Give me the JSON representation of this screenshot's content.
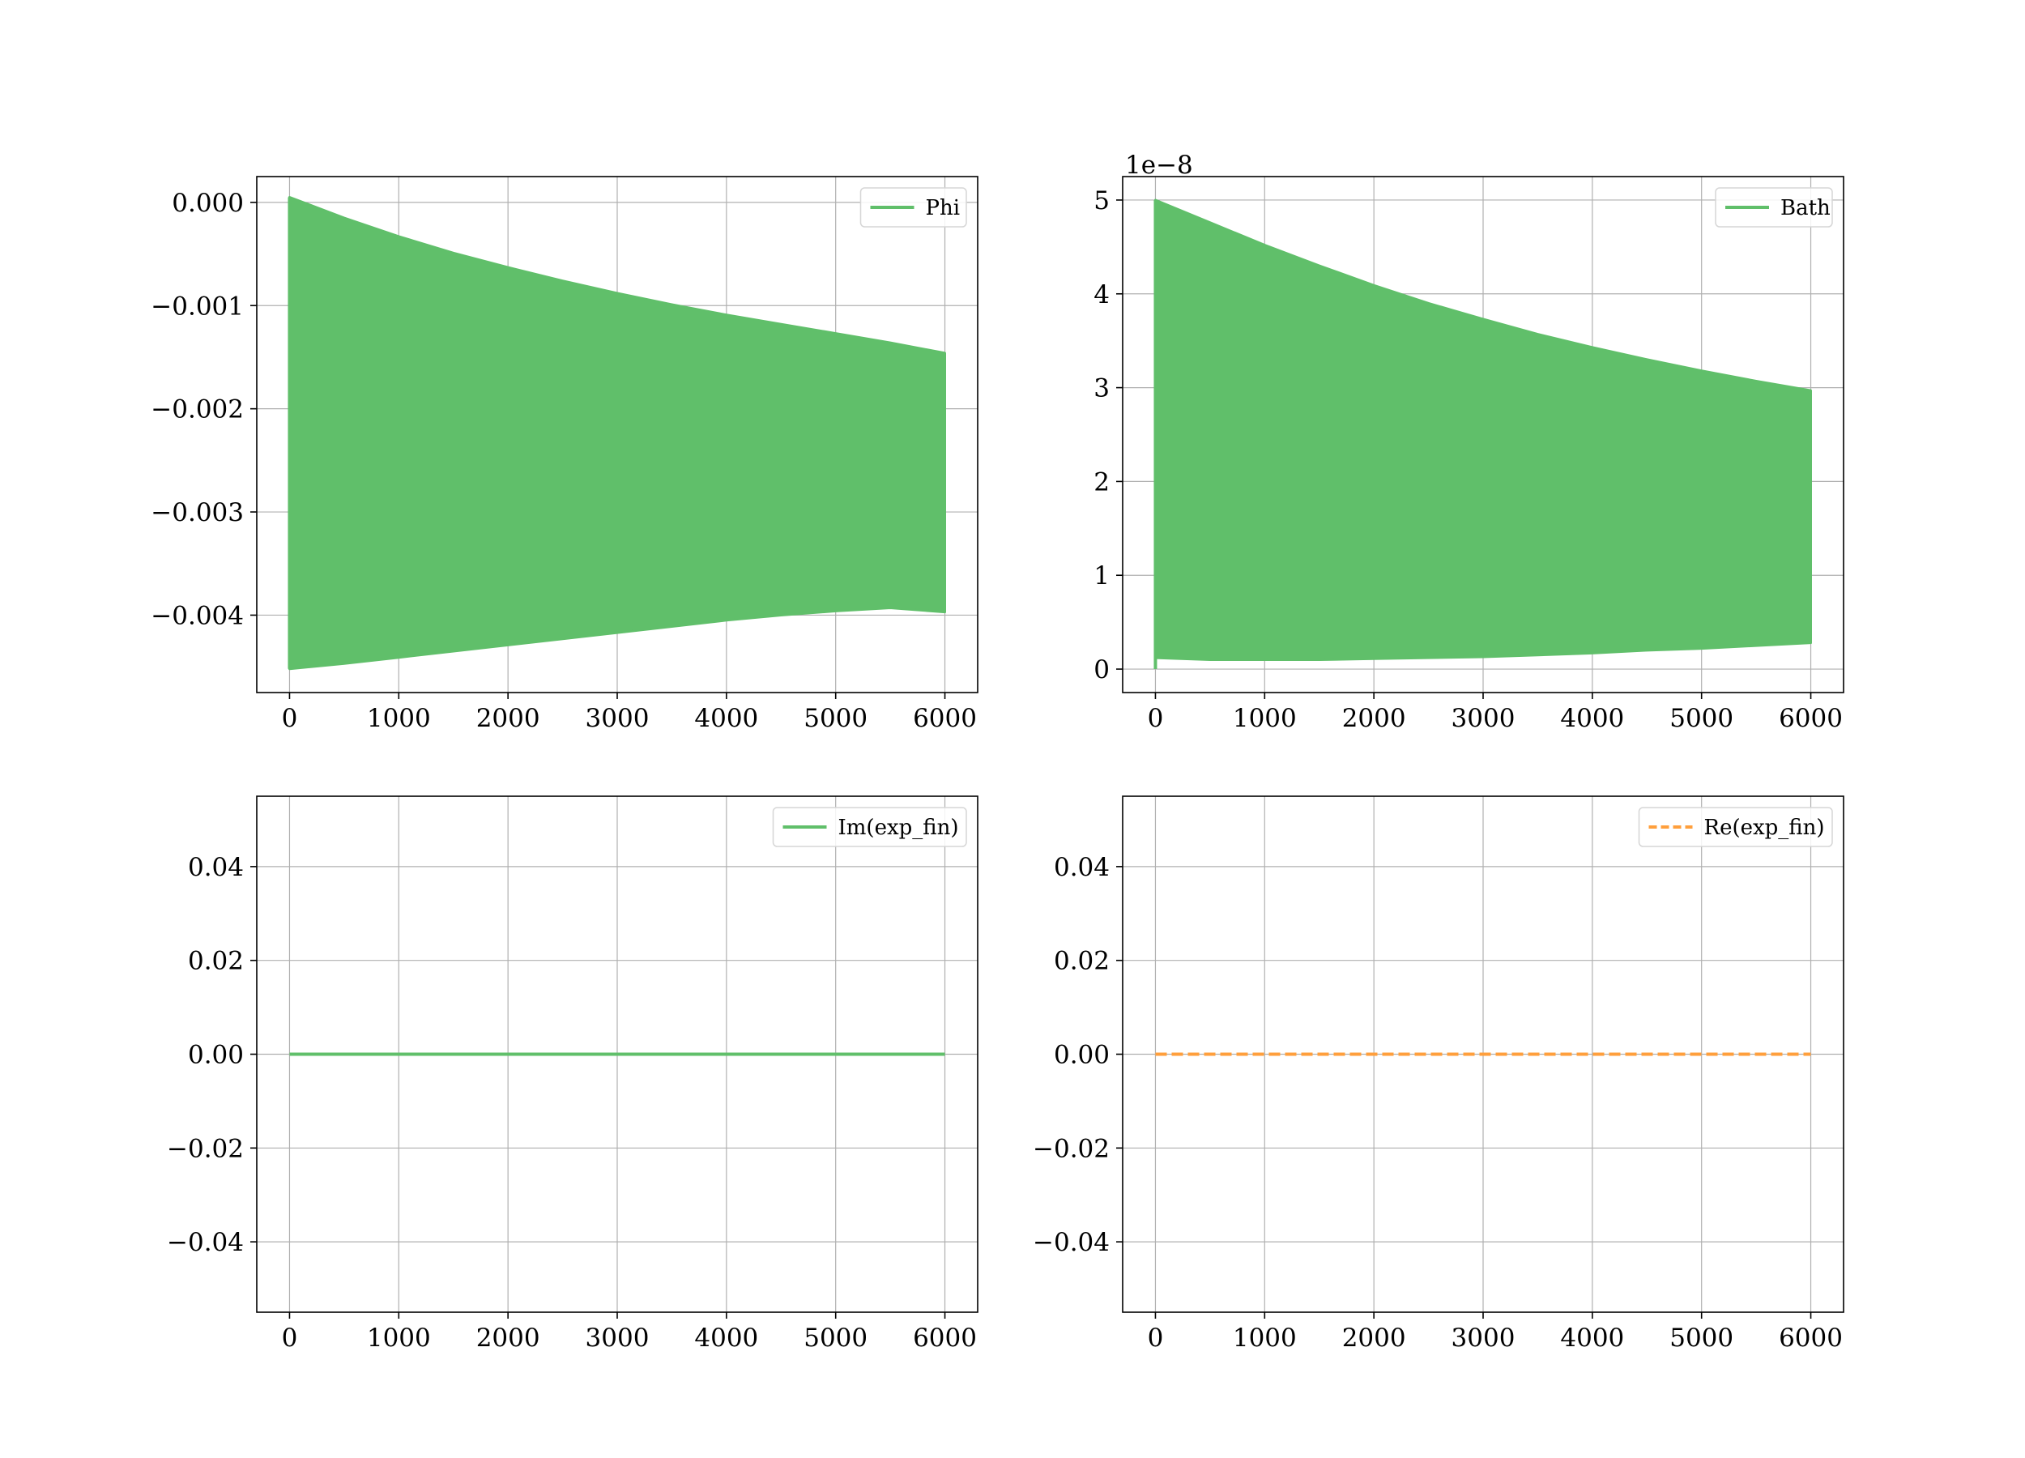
{
  "colors": {
    "green": "#60bf6a",
    "orange": "#ff9f3c",
    "grid": "#b0b0b0",
    "axes": "#000000"
  },
  "chart_data": [
    {
      "id": "phi",
      "type": "area",
      "title": "",
      "xlabel": "",
      "ylabel": "",
      "xlim": [
        -300,
        6300
      ],
      "ylim": [
        -0.00475,
        0.00025
      ],
      "xticks": [
        0,
        1000,
        2000,
        3000,
        4000,
        5000,
        6000
      ],
      "xtick_labels": [
        "0",
        "1000",
        "2000",
        "3000",
        "4000",
        "5000",
        "6000"
      ],
      "yticks": [
        0.0,
        -0.001,
        -0.002,
        -0.003,
        -0.004
      ],
      "ytick_labels": [
        "0.000",
        "−0.001",
        "−0.002",
        "−0.003",
        "−0.004"
      ],
      "grid": true,
      "legend_position": "top-right",
      "y_offset_label": "",
      "series": [
        {
          "name": "Phi",
          "color": "#60bf6a",
          "style": "solid-band",
          "x": [
            0,
            500,
            1000,
            1500,
            2000,
            2500,
            3000,
            3500,
            4000,
            4500,
            5000,
            5500,
            6000
          ],
          "upper": [
            5e-05,
            -0.00015,
            -0.00033,
            -0.00049,
            -0.00063,
            -0.00076,
            -0.00088,
            -0.00099,
            -0.00109,
            -0.00118,
            -0.00127,
            -0.00136,
            -0.00146
          ],
          "lower": [
            -0.00452,
            -0.00447,
            -0.00441,
            -0.00435,
            -0.00429,
            -0.00423,
            -0.00417,
            -0.00411,
            -0.00405,
            -0.004,
            -0.00396,
            -0.00393,
            -0.00397
          ]
        }
      ]
    },
    {
      "id": "bath",
      "type": "area",
      "title": "",
      "xlabel": "",
      "ylabel": "",
      "xlim": [
        -300,
        6300
      ],
      "ylim": [
        -0.25,
        5.25
      ],
      "xticks": [
        0,
        1000,
        2000,
        3000,
        4000,
        5000,
        6000
      ],
      "xtick_labels": [
        "0",
        "1000",
        "2000",
        "3000",
        "4000",
        "5000",
        "6000"
      ],
      "yticks": [
        0,
        1,
        2,
        3,
        4,
        5
      ],
      "ytick_labels": [
        "0",
        "1",
        "2",
        "3",
        "4",
        "5"
      ],
      "grid": true,
      "legend_position": "top-right",
      "y_offset_label": "1e−8",
      "series": [
        {
          "name": "Bath",
          "color": "#60bf6a",
          "style": "solid-band",
          "x": [
            0,
            500,
            1000,
            1500,
            2000,
            2500,
            3000,
            3500,
            4000,
            4500,
            5000,
            5500,
            6000
          ],
          "upper": [
            5.0,
            4.76,
            4.52,
            4.3,
            4.09,
            3.9,
            3.73,
            3.57,
            3.43,
            3.3,
            3.18,
            3.07,
            2.97
          ],
          "lower": [
            0.12,
            0.1,
            0.1,
            0.1,
            0.11,
            0.12,
            0.13,
            0.15,
            0.17,
            0.2,
            0.22,
            0.25,
            0.28
          ]
        }
      ]
    },
    {
      "id": "im-exp-fin",
      "type": "line",
      "title": "",
      "xlabel": "",
      "ylabel": "",
      "xlim": [
        -300,
        6300
      ],
      "ylim": [
        -0.055,
        0.055
      ],
      "xticks": [
        0,
        1000,
        2000,
        3000,
        4000,
        5000,
        6000
      ],
      "xtick_labels": [
        "0",
        "1000",
        "2000",
        "3000",
        "4000",
        "5000",
        "6000"
      ],
      "yticks": [
        0.04,
        0.02,
        0.0,
        -0.02,
        -0.04
      ],
      "ytick_labels": [
        "0.04",
        "0.02",
        "0.00",
        "−0.02",
        "−0.04"
      ],
      "grid": true,
      "legend_position": "top-right",
      "y_offset_label": "",
      "series": [
        {
          "name": "Im(exp_fin)",
          "color": "#60bf6a",
          "style": "solid",
          "x": [
            0,
            6000
          ],
          "y": [
            0.0,
            0.0
          ]
        }
      ]
    },
    {
      "id": "re-exp-fin",
      "type": "line",
      "title": "",
      "xlabel": "",
      "ylabel": "",
      "xlim": [
        -300,
        6300
      ],
      "ylim": [
        -0.055,
        0.055
      ],
      "xticks": [
        0,
        1000,
        2000,
        3000,
        4000,
        5000,
        6000
      ],
      "xtick_labels": [
        "0",
        "1000",
        "2000",
        "3000",
        "4000",
        "5000",
        "6000"
      ],
      "yticks": [
        0.04,
        0.02,
        0.0,
        -0.02,
        -0.04
      ],
      "ytick_labels": [
        "0.04",
        "0.02",
        "0.00",
        "−0.02",
        "−0.04"
      ],
      "grid": true,
      "legend_position": "top-right",
      "y_offset_label": "",
      "series": [
        {
          "name": "Re(exp_fin)",
          "color": "#ff9f3c",
          "style": "dashed",
          "x": [
            0,
            6000
          ],
          "y": [
            0.0,
            0.0
          ]
        }
      ]
    }
  ]
}
